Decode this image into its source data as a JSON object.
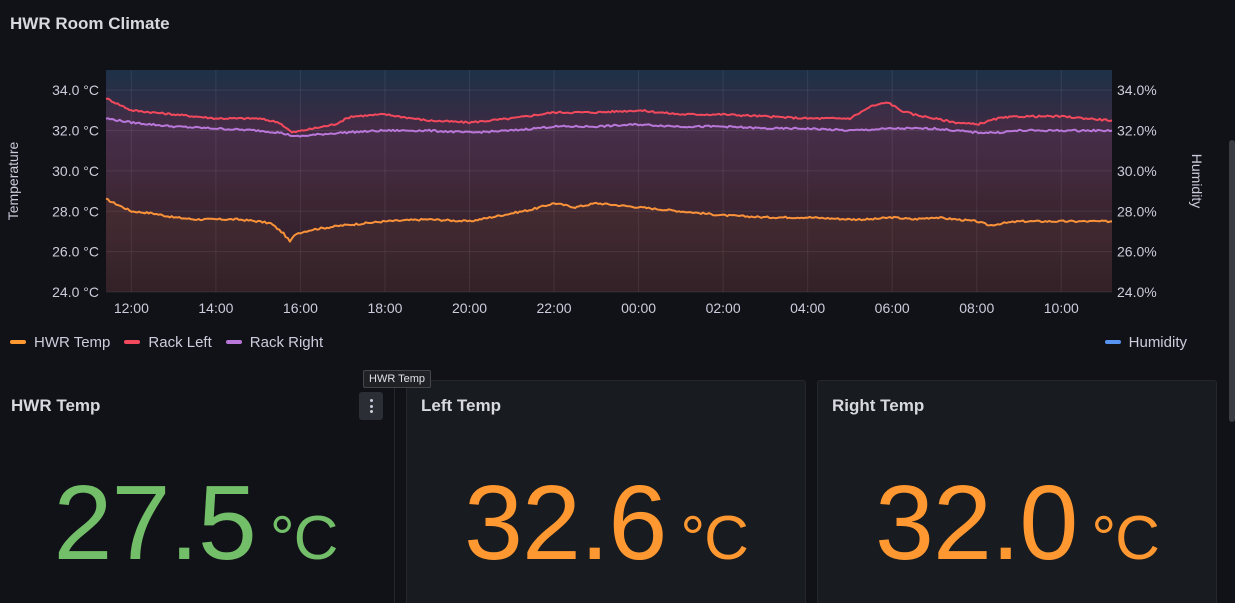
{
  "top_panel": {
    "title": "HWR Room Climate"
  },
  "chart_data": {
    "type": "line",
    "x_tick_labels": [
      "12:00",
      "14:00",
      "16:00",
      "18:00",
      "20:00",
      "22:00",
      "00:00",
      "02:00",
      "04:00",
      "06:00",
      "08:00",
      "10:00"
    ],
    "x_tick_hours": [
      12,
      14,
      16,
      18,
      20,
      22,
      24,
      26,
      28,
      30,
      32,
      34
    ],
    "x_range_hours": [
      11.4,
      35.2
    ],
    "y_left_label": "Temperature",
    "y_left_ticks": [
      "34.0 °C",
      "32.0 °C",
      "30.0 °C",
      "28.0 °C",
      "26.0 °C",
      "24.0 °C"
    ],
    "y_left_values": [
      34,
      32,
      30,
      28,
      26,
      24
    ],
    "y_left_range": [
      24,
      35
    ],
    "y_right_label": "Humidity",
    "y_right_ticks": [
      "34.0%",
      "32.0%",
      "30.0%",
      "28.0%",
      "26.0%",
      "24.0%"
    ],
    "y_right_values": [
      34,
      32,
      30,
      28,
      26,
      24
    ],
    "grid": true,
    "series": [
      {
        "name": "HWR Temp",
        "color": "#ff9830",
        "x": [
          11.4,
          12.0,
          12.5,
          13.0,
          13.5,
          14.0,
          14.5,
          15.0,
          15.3,
          15.6,
          15.75,
          15.9,
          16.3,
          17.0,
          17.5,
          18.0,
          19.0,
          20.0,
          21.0,
          21.5,
          22.0,
          22.5,
          23.0,
          24.0,
          25.0,
          26.0,
          27.0,
          28.0,
          29.0,
          29.5,
          30.0,
          30.5,
          31.0,
          31.5,
          32.0,
          32.3,
          32.6,
          33.0,
          34.0,
          35.2
        ],
        "values": [
          28.6,
          28.0,
          27.9,
          27.7,
          27.6,
          27.6,
          27.6,
          27.5,
          27.4,
          26.9,
          26.5,
          26.9,
          27.1,
          27.3,
          27.4,
          27.5,
          27.6,
          27.5,
          27.9,
          28.1,
          28.4,
          28.2,
          28.4,
          28.2,
          28.0,
          27.8,
          27.7,
          27.7,
          27.6,
          27.6,
          27.7,
          27.6,
          27.7,
          27.6,
          27.5,
          27.3,
          27.4,
          27.5,
          27.5,
          27.5
        ]
      },
      {
        "name": "Rack Left",
        "color": "#f2495c",
        "x": [
          11.4,
          12.0,
          12.5,
          13.0,
          14.0,
          15.0,
          15.5,
          15.8,
          16.3,
          16.8,
          17.2,
          18.0,
          19.0,
          20.0,
          21.0,
          22.0,
          23.0,
          24.0,
          25.0,
          26.0,
          27.0,
          28.0,
          29.0,
          29.5,
          29.9,
          30.2,
          30.5,
          31.0,
          31.5,
          32.0,
          32.5,
          33.0,
          34.0,
          35.2
        ],
        "values": [
          33.6,
          33.0,
          32.9,
          32.8,
          32.6,
          32.6,
          32.4,
          31.9,
          32.1,
          32.3,
          32.7,
          32.8,
          32.5,
          32.4,
          32.6,
          32.9,
          32.9,
          33.0,
          32.8,
          32.8,
          32.7,
          32.6,
          32.6,
          33.2,
          33.4,
          33.0,
          32.8,
          32.6,
          32.4,
          32.3,
          32.6,
          32.7,
          32.7,
          32.5
        ]
      },
      {
        "name": "Rack Right",
        "color": "#b877d9",
        "x": [
          11.4,
          12.0,
          13.0,
          14.0,
          15.0,
          15.5,
          15.9,
          16.4,
          17.0,
          18.0,
          19.0,
          20.0,
          21.0,
          22.0,
          23.0,
          24.0,
          25.0,
          26.0,
          27.0,
          28.0,
          29.0,
          30.0,
          31.0,
          32.0,
          32.5,
          33.0,
          34.0,
          35.2
        ],
        "values": [
          32.6,
          32.4,
          32.2,
          32.1,
          32.0,
          31.9,
          31.7,
          31.8,
          31.9,
          32.0,
          32.0,
          31.9,
          32.0,
          32.2,
          32.2,
          32.3,
          32.2,
          32.2,
          32.1,
          32.1,
          32.0,
          32.1,
          32.1,
          31.9,
          31.9,
          32.0,
          32.0,
          32.0
        ]
      }
    ],
    "humidity_series": {
      "name": "Humidity",
      "color": "#5794f2"
    }
  },
  "legend": {
    "left": [
      {
        "label": "HWR Temp",
        "color": "#ff9830"
      },
      {
        "label": "Rack Left",
        "color": "#f2495c"
      },
      {
        "label": "Rack Right",
        "color": "#b877d9"
      }
    ],
    "right": [
      {
        "label": "Humidity",
        "color": "#5794f2"
      }
    ]
  },
  "stats": {
    "hwr": {
      "title": "HWR Temp",
      "value": "27.5",
      "unit": "°C",
      "color": "#73bf69"
    },
    "left": {
      "title": "Left Temp",
      "value": "32.6",
      "unit": "°C",
      "color": "#ff9830"
    },
    "right": {
      "title": "Right Temp",
      "value": "32.0",
      "unit": "°C",
      "color": "#ff9830"
    }
  },
  "tooltip": {
    "text": "HWR Temp"
  }
}
